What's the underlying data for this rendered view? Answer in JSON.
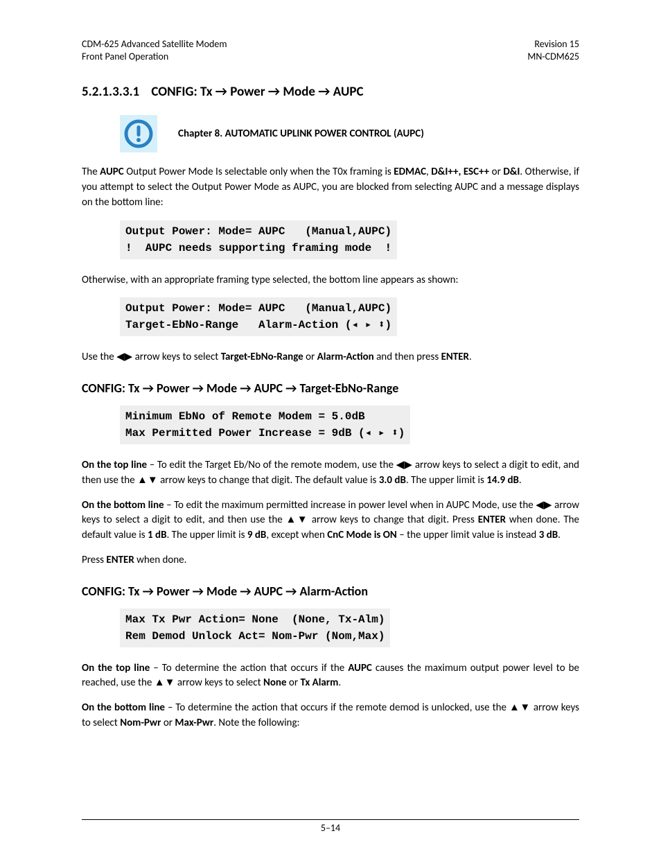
{
  "header": {
    "left_line1": "CDM-625 Advanced Satellite Modem",
    "left_line2": "Front Panel Operation",
    "right_line1": "Revision 15",
    "right_line2": "MN-CDM625"
  },
  "section1": {
    "number": "5.2.1.3.3.1",
    "title_html": "CONFIG: Tx → Power → Mode  → AUPC"
  },
  "notice": {
    "text": "Chapter 8. AUTOMATIC UPLINK POWER CONTROL (AUPC)",
    "icon_color": "#2a81c3",
    "icon_bg": "#d6f0fb"
  },
  "para1_html": "The <b>AUPC</b> Output Power Mode Is selectable only when the T0x framing is <b>EDMAC</b>, <b>D&amp;I++, ESC++</b> or <b>D&amp;I</b>. Otherwise, if you attempt to select the Output Power Mode as AUPC, you are blocked from selecting AUPC and a message displays on the bottom line:",
  "code1": "Output Power: Mode= AUPC   (Manual,AUPC)\n!  AUPC needs supporting framing mode  !",
  "para2": "Otherwise, with an appropriate framing type selected, the bottom line appears as shown:",
  "code2": "Output Power: Mode= AUPC   (Manual,AUPC)\nTarget-EbNo-Range   Alarm-Action (◂ ▸ ⬍)",
  "para3_html": "Use the ◀▶ arrow keys to select <b>Target-EbNo-Range</b> or <b>Alarm-Action</b> and then press <b>ENTER</b>.",
  "section2": {
    "title_html": "CONFIG: Tx → Power → Mode → AUPC → Target-EbNo-Range"
  },
  "code3": "Minimum EbNo of Remote Modem = 5.0dB\nMax Permitted Power Increase = 9dB (◂ ▸ ⬍)",
  "para4_html": "<b>On the top line</b> – To edit the Target Eb/No of the remote modem, use the ◀▶ arrow keys to select a digit to edit, and then use the ▲▼ arrow keys to change that digit. The default value is <b>3.0 dB</b>. The upper limit is <b>14.9 dB</b>.",
  "para5_html": "<b>On the bottom line</b> – To edit the maximum permitted increase in power level when in AUPC Mode, use the ◀▶ arrow keys to select a digit to edit, and then use the ▲▼ arrow keys to change that digit. Press <b>ENTER</b> when done. The default value is <b>1 dB</b>. The upper limit is <b>9 dB</b>, except when <b>CnC Mode is ON</b> – the upper limit value is instead <b>3 dB</b>.",
  "para6_html": "Press <b>ENTER</b> when done.",
  "section3": {
    "title_html": "CONFIG: Tx → Power → Mode → AUPC → Alarm-Action"
  },
  "code4": "Max Tx Pwr Action= None  (None, Tx-Alm)\nRem Demod Unlock Act= Nom-Pwr (Nom,Max)",
  "para7_html": "<b>On the top line</b> – To determine the action that occurs if the <b>AUPC</b> causes the maximum output power level to be reached, use the ▲▼ arrow keys to select <b>None</b> or <b>Tx Alarm</b>.",
  "para8_html": "<b>On the bottom line</b> – To determine the action that occurs if the remote demod is unlocked, use the ▲▼ arrow keys to select <b>Nom-Pwr</b> or <b>Max-Pwr</b>. Note the following:",
  "footer": {
    "page": "5–14"
  }
}
